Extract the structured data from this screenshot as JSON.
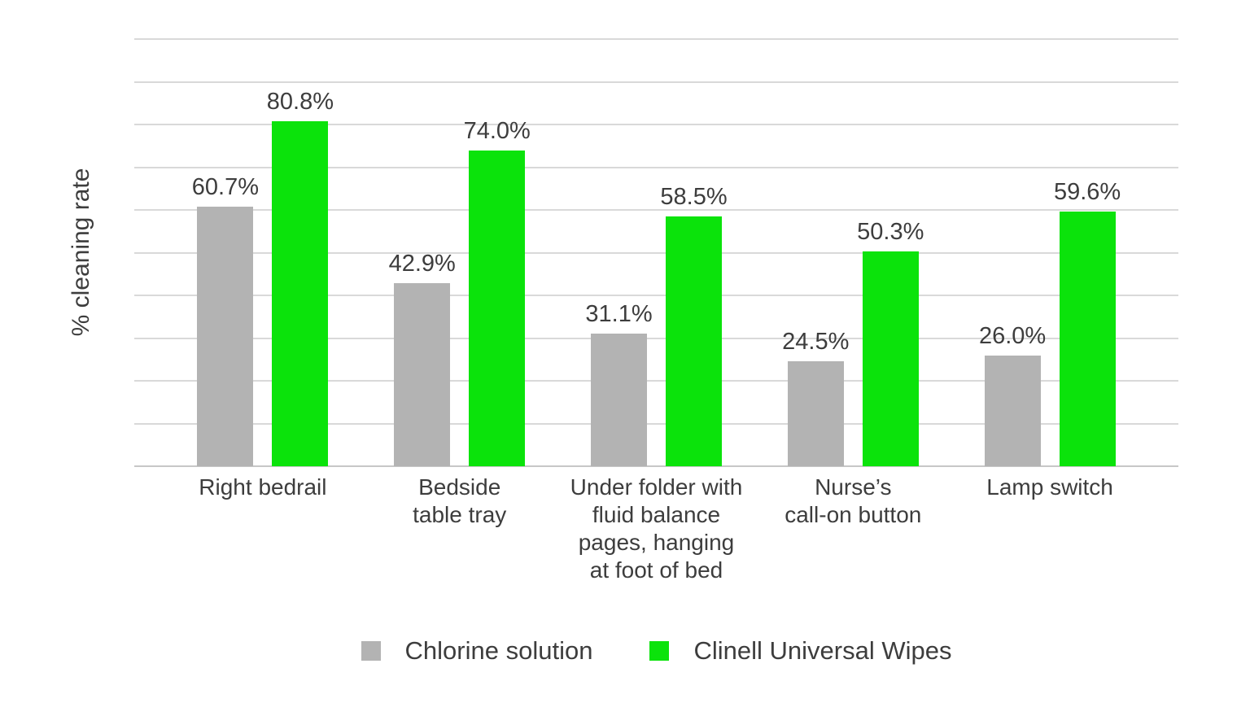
{
  "chart_data": {
    "type": "bar",
    "title": "",
    "xlabel": "",
    "ylabel": "% cleaning rate",
    "ylim": [
      0,
      100
    ],
    "grid": true,
    "grid_step": 10,
    "y_tick_labels_visible": false,
    "legend_position": "bottom",
    "value_label_suffix": "%",
    "categories": [
      "Right bedrail",
      "Bedside\ntable tray",
      "Under folder with\nfluid balance\npages, hanging\nat foot of bed",
      "Nurse’s\ncall-on button",
      "Lamp switch"
    ],
    "series": [
      {
        "name": "Chlorine solution",
        "color": "#b3b3b3",
        "values": [
          60.7,
          42.9,
          31.1,
          24.5,
          26.0
        ]
      },
      {
        "name": "Clinell Universal Wipes",
        "color": "#0be30b",
        "values": [
          80.8,
          74.0,
          58.5,
          50.3,
          59.6
        ]
      }
    ],
    "value_labels": [
      [
        "60.7%",
        "42.9%",
        "31.1%",
        "24.5%",
        "26.0%"
      ],
      [
        "80.8%",
        "74.0%",
        "58.5%",
        "50.3%",
        "59.6%"
      ]
    ]
  },
  "colors": {
    "background": "#ffffff",
    "gridline": "#d9d9d9",
    "baseline": "#c7c7c7",
    "text": "#3d3d3d"
  }
}
